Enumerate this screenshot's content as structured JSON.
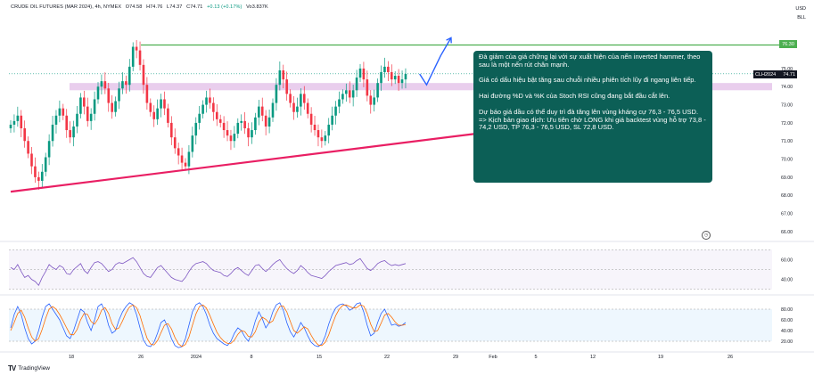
{
  "header": {
    "symbol": "CRUDE OIL FUTURES (MAR 2024), 4h, NYMEX",
    "open": "O74.58",
    "high": "H74.76",
    "low": "L74.37",
    "close": "C74.71",
    "change": "+0.13 (+0.17%)",
    "volume": "Vo3.837K"
  },
  "corner": {
    "currency": "USD",
    "units": "BLL"
  },
  "price_tags": {
    "ticker": "CLH2024",
    "last": "74.71",
    "resistance": "76.30"
  },
  "watermark": {
    "brand": "TradingView"
  },
  "annotation": {
    "p1": "Đà giảm của giá chững lại với sự xuất hiện của nến inverted hammer, theo sau là một nến rút chân mạnh.",
    "p2": "Giá có dấu hiệu bật tăng sau chuỗi nhiều phiên tích lũy đi ngang liên tiếp.",
    "p3": "Hai đường %D và %K của Stoch RSI cũng đang bắt đầu cắt lên.",
    "p4": "Dự báo giá dầu có thể duy trì đà tăng lên vùng kháng cự 76,3 - 76,5 USD.",
    "p5": "=> Kịch bản giao dịch: Ưu tiên chờ LONG khi giá backtest vùng hỗ trợ 73,8 - 74,2 USD, TP 76,3 - 76,5 USD, SL 72,8 USD."
  },
  "colors": {
    "up": "#089981",
    "down": "#f23645",
    "resistance": "#4caf50",
    "trendline": "#e91e63",
    "zone": "#e1bee7",
    "arrow": "#2962ff",
    "rsi": "#7e57c2",
    "k_line": "#2962ff",
    "d_line": "#ff6d00",
    "note_bg": "#0c5f56"
  },
  "chart_data": {
    "type": "candlestick",
    "title": "CRUDE OIL FUTURES (MAR 2024), 4h, NYMEX",
    "x_ticks": [
      "18",
      "26",
      "2024",
      "8",
      "15",
      "22",
      "29",
      "Feb",
      "5",
      "12",
      "19",
      "26"
    ],
    "y_ticks": [
      66.0,
      67.0,
      68.0,
      69.0,
      70.0,
      71.0,
      72.0,
      73.0,
      74.0,
      75.0,
      76.0,
      77.0
    ],
    "ylim": [
      65.6,
      77.8
    ],
    "last_price": 74.71,
    "resistance": 76.3,
    "support_zone": [
      73.8,
      74.2
    ],
    "trendline": {
      "from": [
        0,
        68.2
      ],
      "to": [
        133,
        71.4
      ]
    },
    "projection": [
      [
        117,
        74.7
      ],
      [
        119,
        74.1
      ],
      [
        123,
        75.7
      ],
      [
        126,
        76.7
      ]
    ],
    "closes": [
      71.9,
      72.1,
      72.4,
      71.7,
      71.0,
      70.3,
      69.6,
      69.0,
      68.8,
      69.3,
      70.1,
      71.0,
      71.9,
      72.4,
      72.8,
      72.4,
      71.6,
      71.2,
      71.8,
      72.5,
      73.4,
      72.9,
      72.1,
      72.5,
      73.3,
      74.0,
      74.3,
      73.9,
      73.1,
      72.6,
      73.2,
      73.9,
      74.3,
      74.1,
      75.1,
      76.2,
      76.0,
      75.2,
      74.1,
      73.1,
      72.6,
      72.2,
      72.8,
      73.3,
      72.8,
      72.0,
      71.2,
      70.6,
      70.2,
      69.8,
      69.6,
      70.4,
      71.3,
      72.0,
      72.5,
      73.0,
      73.4,
      73.1,
      72.6,
      72.2,
      72.0,
      71.6,
      71.3,
      71.0,
      71.4,
      72.0,
      72.1,
      71.7,
      71.2,
      71.6,
      72.3,
      72.9,
      72.4,
      71.8,
      72.3,
      73.1,
      74.1,
      74.9,
      74.4,
      73.6,
      73.1,
      72.6,
      72.9,
      73.6,
      73.1,
      72.5,
      71.9,
      71.6,
      71.2,
      71.0,
      71.3,
      71.9,
      72.4,
      72.9,
      73.3,
      73.6,
      73.8,
      73.4,
      73.8,
      74.5,
      75.0,
      74.4,
      73.5,
      73.0,
      73.4,
      74.2,
      74.8,
      75.1,
      74.8,
      74.4,
      74.6,
      74.2,
      74.4,
      74.7
    ],
    "rsi": {
      "ylim": [
        28,
        72
      ],
      "ticks": [
        40.0,
        60.0
      ],
      "bands": [
        30,
        50,
        70
      ],
      "values": [
        52,
        50,
        55,
        48,
        42,
        44,
        40,
        38,
        34,
        42,
        48,
        55,
        52,
        50,
        54,
        52,
        46,
        45,
        50,
        53,
        56,
        49,
        46,
        52,
        57,
        58,
        56,
        52,
        48,
        50,
        55,
        57,
        56,
        58,
        60,
        62,
        58,
        52,
        46,
        43,
        42,
        47,
        52,
        54,
        50,
        46,
        42,
        40,
        39,
        38,
        42,
        48,
        53,
        56,
        57,
        58,
        56,
        52,
        49,
        48,
        47,
        44,
        43,
        46,
        50,
        52,
        49,
        46,
        44,
        49,
        54,
        55,
        51,
        48,
        51,
        55,
        58,
        60,
        55,
        51,
        48,
        46,
        49,
        54,
        51,
        47,
        44,
        43,
        42,
        41,
        44,
        48,
        51,
        54,
        55,
        56,
        57,
        55,
        56,
        59,
        61,
        56,
        51,
        49,
        52,
        56,
        58,
        59,
        56,
        54,
        55,
        54,
        55,
        56
      ]
    },
    "stoch": {
      "ylim": [
        5,
        100
      ],
      "ticks": [
        20.0,
        40.0,
        60.0,
        80.0
      ],
      "bands": [
        20,
        80
      ],
      "series": [
        {
          "name": "%K",
          "values": [
            45,
            70,
            85,
            70,
            45,
            25,
            15,
            20,
            40,
            65,
            85,
            90,
            80,
            70,
            60,
            45,
            30,
            25,
            40,
            60,
            80,
            75,
            55,
            40,
            60,
            85,
            90,
            75,
            50,
            35,
            40,
            60,
            75,
            85,
            92,
            88,
            70,
            45,
            22,
            12,
            10,
            18,
            35,
            55,
            60,
            45,
            25,
            12,
            8,
            10,
            25,
            50,
            75,
            88,
            92,
            85,
            70,
            50,
            35,
            25,
            20,
            15,
            12,
            20,
            35,
            45,
            40,
            28,
            20,
            35,
            58,
            75,
            62,
            45,
            55,
            75,
            88,
            92,
            78,
            55,
            38,
            28,
            40,
            55,
            45,
            30,
            18,
            12,
            10,
            15,
            30,
            52,
            70,
            82,
            88,
            90,
            86,
            78,
            82,
            90,
            92,
            75,
            50,
            30,
            35,
            55,
            72,
            80,
            65,
            50,
            52,
            48,
            50,
            55
          ]
        },
        {
          "name": "%D",
          "values": [
            40,
            55,
            72,
            78,
            65,
            45,
            28,
            20,
            25,
            42,
            63,
            80,
            85,
            80,
            70,
            58,
            45,
            33,
            32,
            42,
            60,
            72,
            70,
            57,
            52,
            62,
            78,
            83,
            72,
            53,
            42,
            45,
            58,
            73,
            84,
            88,
            83,
            68,
            46,
            26,
            15,
            13,
            21,
            36,
            50,
            53,
            43,
            27,
            15,
            10,
            14,
            28,
            50,
            71,
            85,
            88,
            82,
            68,
            52,
            37,
            27,
            20,
            16,
            16,
            22,
            33,
            40,
            38,
            29,
            28,
            38,
            56,
            65,
            61,
            54,
            58,
            73,
            85,
            86,
            75,
            57,
            40,
            35,
            41,
            47,
            43,
            31,
            20,
            13,
            12,
            18,
            32,
            51,
            68,
            80,
            87,
            88,
            85,
            82,
            83,
            88,
            86,
            72,
            52,
            38,
            40,
            54,
            69,
            72,
            65,
            56,
            50,
            50,
            51
          ]
        }
      ]
    }
  }
}
